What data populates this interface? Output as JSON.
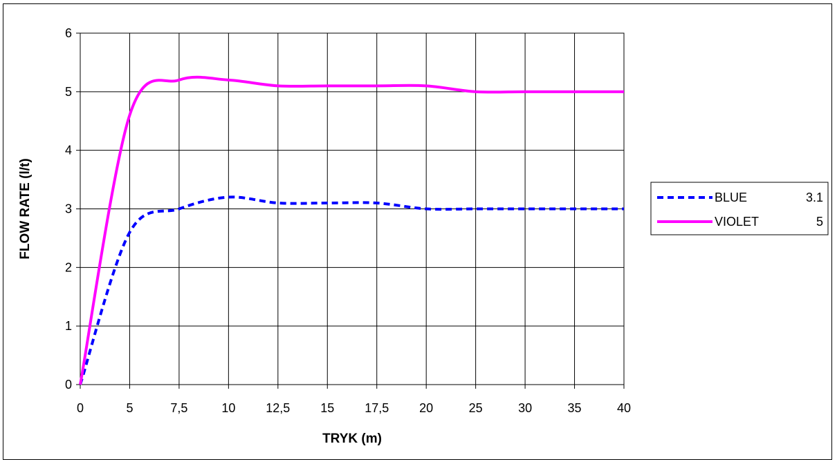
{
  "chart_data": {
    "type": "line",
    "title": "",
    "xlabel": "TRYK (m)",
    "ylabel": "FLOW RATE (l/t)",
    "categories": [
      "0",
      "5",
      "7,5",
      "10",
      "12,5",
      "15",
      "17,5",
      "20",
      "25",
      "30",
      "35",
      "40"
    ],
    "ylim": [
      0,
      6
    ],
    "yticks": [
      "0",
      "1",
      "2",
      "3",
      "4",
      "5",
      "6"
    ],
    "grid": true,
    "legend_position": "right",
    "series": [
      {
        "name": "BLUE",
        "legend_value": "3.1",
        "color": "#0000ff",
        "style": "dashed",
        "values": [
          0,
          2.6,
          3.0,
          3.2,
          3.1,
          3.1,
          3.1,
          3.0,
          3.0,
          3.0,
          3.0,
          3.0
        ]
      },
      {
        "name": "VIOLET",
        "legend_value": "5",
        "color": "#ff00ff",
        "style": "solid",
        "values": [
          0,
          4.6,
          5.2,
          5.2,
          5.1,
          5.1,
          5.1,
          5.1,
          5.0,
          5.0,
          5.0,
          5.0
        ]
      }
    ]
  }
}
